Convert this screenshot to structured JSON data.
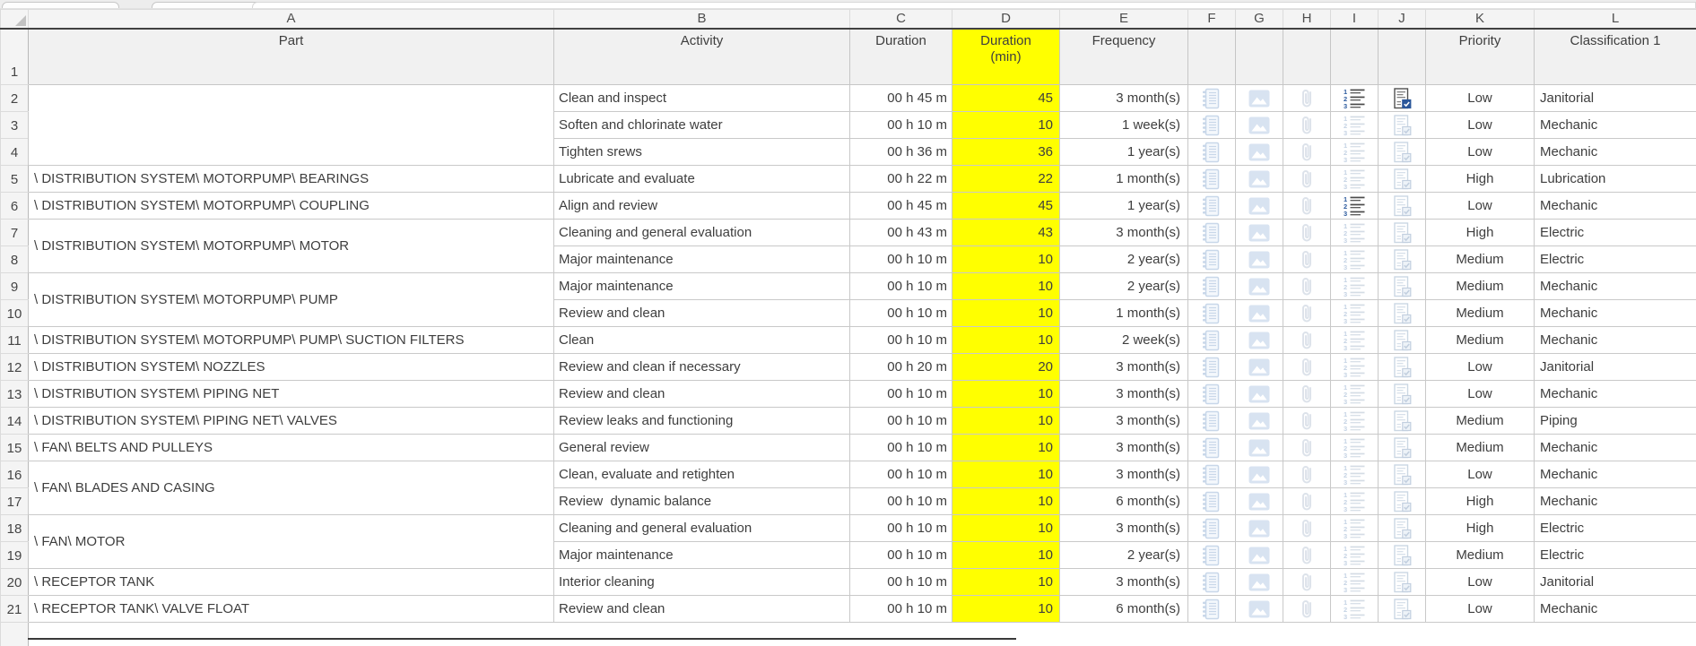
{
  "sheet": {
    "column_letters": [
      "A",
      "B",
      "C",
      "D",
      "E",
      "F",
      "G",
      "H",
      "I",
      "J",
      "K",
      "L"
    ],
    "row1_number": "1",
    "headers": {
      "part": "Part",
      "activity": "Activity",
      "duration": "Duration",
      "duration_min": "Duration (min)",
      "frequency": "Frequency",
      "priority": "Priority",
      "classification": "Classification 1"
    },
    "accent_colors": {
      "highlight_yellow": "#FFFF00",
      "header_gray": "#F1F1F1",
      "active_icon_blue": "#2B579A",
      "faded_icon_blue": "#C8D7E9"
    },
    "icon_columns": [
      {
        "letter": "F",
        "id": "notebook",
        "name": "notebook-icon"
      },
      {
        "letter": "G",
        "id": "image",
        "name": "image-icon"
      },
      {
        "letter": "H",
        "id": "paperclip",
        "name": "paperclip-icon"
      },
      {
        "letter": "I",
        "id": "numbered-list",
        "name": "numbered-list-icon"
      },
      {
        "letter": "J",
        "id": "checklist",
        "name": "checklist-icon"
      }
    ],
    "rows": [
      {
        "n": 2,
        "part": "",
        "part_span": 3,
        "activity": "Clean and inspect",
        "duration": "00 h 45 m",
        "duration_min": "45",
        "frequency": "3 month(s)",
        "priority": "Low",
        "classification": "Janitorial",
        "active_icons": [
          "numbered-list",
          "checklist"
        ]
      },
      {
        "n": 3,
        "activity": "Soften and chlorinate water",
        "duration": "00 h 10 m",
        "duration_min": "10",
        "frequency": "1 week(s)",
        "priority": "Low",
        "classification": "Mechanic"
      },
      {
        "n": 4,
        "activity": "Tighten srews",
        "duration": "00 h 36 m",
        "duration_min": "36",
        "frequency": "1 year(s)",
        "priority": "Low",
        "classification": "Mechanic"
      },
      {
        "n": 5,
        "part": "\\ DISTRIBUTION SYSTEM\\ MOTORPUMP\\ BEARINGS",
        "part_span": 1,
        "activity": "Lubricate and evaluate",
        "duration": "00 h 22 m",
        "duration_min": "22",
        "frequency": "1 month(s)",
        "priority": "High",
        "classification": "Lubrication"
      },
      {
        "n": 6,
        "part": "\\ DISTRIBUTION SYSTEM\\ MOTORPUMP\\ COUPLING",
        "part_span": 1,
        "activity": "Align and review",
        "duration": "00 h 45 m",
        "duration_min": "45",
        "frequency": "1 year(s)",
        "priority": "Low",
        "classification": "Mechanic",
        "active_icons": [
          "numbered-list"
        ]
      },
      {
        "n": 7,
        "part": "\\ DISTRIBUTION SYSTEM\\ MOTORPUMP\\ MOTOR",
        "part_span": 2,
        "activity": "Cleaning and general evaluation",
        "duration": "00 h 43 m",
        "duration_min": "43",
        "frequency": "3 month(s)",
        "priority": "High",
        "classification": "Electric"
      },
      {
        "n": 8,
        "activity": "Major maintenance",
        "duration": "00 h 10 m",
        "duration_min": "10",
        "frequency": "2 year(s)",
        "priority": "Medium",
        "classification": "Electric"
      },
      {
        "n": 9,
        "part": "\\ DISTRIBUTION SYSTEM\\ MOTORPUMP\\ PUMP",
        "part_span": 2,
        "activity": "Major maintenance",
        "duration": "00 h 10 m",
        "duration_min": "10",
        "frequency": "2 year(s)",
        "priority": "Medium",
        "classification": "Mechanic"
      },
      {
        "n": 10,
        "activity": "Review and clean",
        "duration": "00 h 10 m",
        "duration_min": "10",
        "frequency": "1 month(s)",
        "priority": "Medium",
        "classification": "Mechanic"
      },
      {
        "n": 11,
        "part": "\\ DISTRIBUTION SYSTEM\\ MOTORPUMP\\ PUMP\\ SUCTION FILTERS",
        "part_span": 1,
        "activity": "Clean",
        "duration": "00 h 10 m",
        "duration_min": "10",
        "frequency": "2 week(s)",
        "priority": "Medium",
        "classification": "Mechanic"
      },
      {
        "n": 12,
        "part": "\\ DISTRIBUTION SYSTEM\\ NOZZLES",
        "part_span": 1,
        "activity": "Review and clean if necessary",
        "duration": "00 h 20 m",
        "duration_min": "20",
        "frequency": "3 month(s)",
        "priority": "Low",
        "classification": "Janitorial"
      },
      {
        "n": 13,
        "part": "\\ DISTRIBUTION SYSTEM\\ PIPING NET",
        "part_span": 1,
        "activity": "Review and clean",
        "duration": "00 h 10 m",
        "duration_min": "10",
        "frequency": "3 month(s)",
        "priority": "Low",
        "classification": "Mechanic"
      },
      {
        "n": 14,
        "part": "\\ DISTRIBUTION SYSTEM\\ PIPING NET\\ VALVES",
        "part_span": 1,
        "activity": "Review leaks and functioning",
        "duration": "00 h 10 m",
        "duration_min": "10",
        "frequency": "3 month(s)",
        "priority": "Medium",
        "classification": "Piping"
      },
      {
        "n": 15,
        "part": "\\ FAN\\ BELTS AND PULLEYS",
        "part_span": 1,
        "activity": "General review",
        "duration": "00 h 10 m",
        "duration_min": "10",
        "frequency": "3 month(s)",
        "priority": "Medium",
        "classification": "Mechanic"
      },
      {
        "n": 16,
        "part": "\\ FAN\\ BLADES AND CASING",
        "part_span": 2,
        "activity": "Clean, evaluate and retighten",
        "duration": "00 h 10 m",
        "duration_min": "10",
        "frequency": "3 month(s)",
        "priority": "Low",
        "classification": "Mechanic"
      },
      {
        "n": 17,
        "activity": "Review  dynamic balance",
        "duration": "00 h 10 m",
        "duration_min": "10",
        "frequency": "6 month(s)",
        "priority": "High",
        "classification": "Mechanic"
      },
      {
        "n": 18,
        "part": "\\ FAN\\ MOTOR",
        "part_span": 2,
        "activity": "Cleaning and general evaluation",
        "duration": "00 h 10 m",
        "duration_min": "10",
        "frequency": "3 month(s)",
        "priority": "High",
        "classification": "Electric"
      },
      {
        "n": 19,
        "activity": "Major maintenance",
        "duration": "00 h 10 m",
        "duration_min": "10",
        "frequency": "2 year(s)",
        "priority": "Medium",
        "classification": "Electric"
      },
      {
        "n": 20,
        "part": "\\ RECEPTOR TANK",
        "part_span": 1,
        "activity": "Interior cleaning",
        "duration": "00 h 10 m",
        "duration_min": "10",
        "frequency": "3 month(s)",
        "priority": "Low",
        "classification": "Janitorial"
      },
      {
        "n": 21,
        "part": "\\ RECEPTOR TANK\\ VALVE FLOAT",
        "part_span": 1,
        "activity": "Review and clean",
        "duration": "00 h 10 m",
        "duration_min": "10",
        "frequency": "6 month(s)",
        "priority": "Low",
        "classification": "Mechanic"
      }
    ]
  }
}
